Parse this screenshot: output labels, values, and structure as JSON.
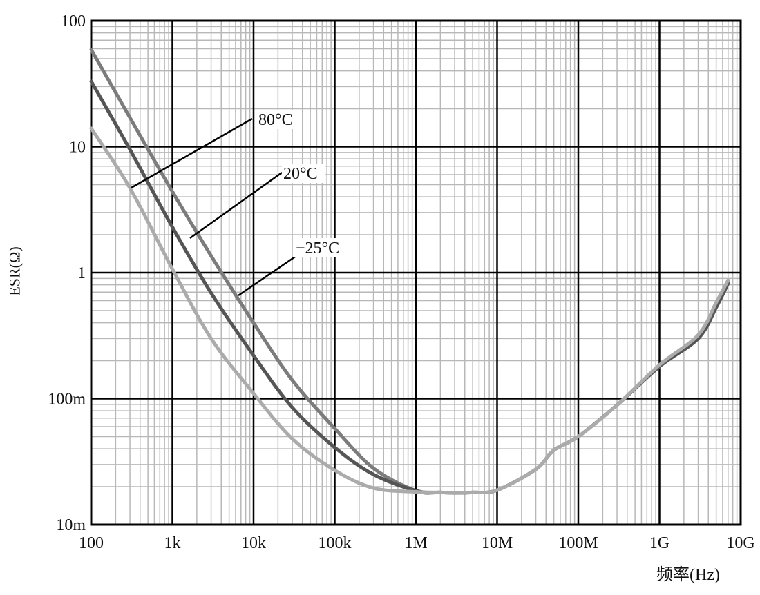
{
  "chart_data": {
    "type": "line",
    "title": "",
    "xlabel": "频率(Hz)",
    "ylabel": "ESR(Ω)",
    "xscale": "log",
    "yscale": "log",
    "xlim": [
      100,
      10000000000
    ],
    "ylim": [
      0.01,
      100
    ],
    "grid": true,
    "x_tick_labels": [
      "100",
      "1k",
      "10k",
      "100k",
      "1M",
      "10M",
      "100M",
      "1G",
      "10G"
    ],
    "y_tick_labels": [
      "10m",
      "100m",
      "1",
      "10",
      "100"
    ],
    "x": [
      100,
      300,
      1000,
      3000,
      10000,
      30000,
      100000,
      300000,
      1000000,
      2000000,
      5000000,
      10000000,
      30000000,
      50000000,
      100000000,
      300000000,
      1000000000,
      3000000000,
      5000000000,
      7000000000
    ],
    "series": [
      {
        "name": "−25°C",
        "color": "#7c7c7c",
        "values": [
          59,
          17,
          4.4,
          1.36,
          0.4,
          0.14,
          0.058,
          0.028,
          0.0186,
          0.018,
          0.018,
          0.0188,
          0.0275,
          0.039,
          0.05,
          0.089,
          0.18,
          0.31,
          0.56,
          0.85
        ]
      },
      {
        "name": "20°C",
        "color": "#555555",
        "values": [
          33,
          9.5,
          2.3,
          0.69,
          0.22,
          0.085,
          0.041,
          0.025,
          0.0186,
          0.018,
          0.018,
          0.0188,
          0.0275,
          0.039,
          0.05,
          0.089,
          0.18,
          0.3,
          0.53,
          0.82
        ]
      },
      {
        "name": "80°C",
        "color": "#ababab",
        "values": [
          14,
          4.7,
          1.07,
          0.3,
          0.11,
          0.048,
          0.027,
          0.0195,
          0.0182,
          0.018,
          0.018,
          0.0188,
          0.0275,
          0.039,
          0.05,
          0.089,
          0.185,
          0.32,
          0.58,
          0.87
        ]
      }
    ],
    "annotations": [
      "80°C",
      "20°C",
      "−25°C"
    ]
  }
}
